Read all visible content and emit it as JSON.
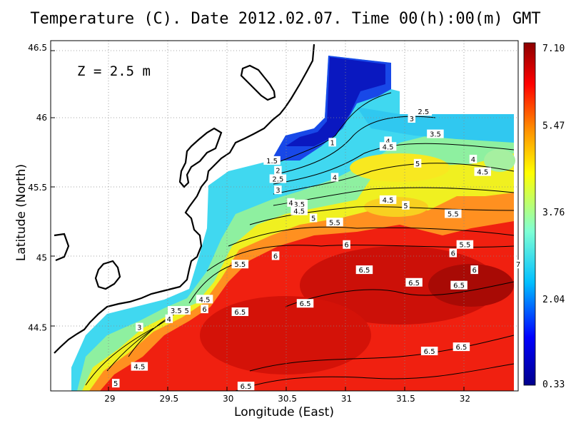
{
  "chart_data": {
    "type": "heatmap",
    "title": "Temperature (C). Date 2012.02.07. Time 00(h):00(m) GMT",
    "xlabel": "Longitude (East)",
    "ylabel": "Latitude (North)",
    "annotation": "Z = 2.5 m",
    "xlim": [
      28.5,
      32.45
    ],
    "ylim": [
      44.05,
      46.55
    ],
    "xticks": [
      "29",
      "29.5",
      "30",
      "30.5",
      "31",
      "31.5",
      "32"
    ],
    "yticks": [
      "44.5",
      "45",
      "45.5",
      "46",
      "46.5"
    ],
    "grid": true,
    "colorbar": {
      "ticks": [
        "0.33",
        "2.04",
        "3.76",
        "5.47",
        "7.10"
      ],
      "range": [
        0.33,
        7.1
      ],
      "colors": [
        "#00008b",
        "#0000ff",
        "#00bfff",
        "#7fffd4",
        "#ffff00",
        "#ff8c00",
        "#ff0000",
        "#8b0000"
      ]
    },
    "contour_labels": [
      {
        "text": "1",
        "lon": 30.88,
        "lat": 45.82
      },
      {
        "text": "1.5",
        "lon": 30.37,
        "lat": 45.69
      },
      {
        "text": "2",
        "lon": 30.42,
        "lat": 45.62
      },
      {
        "text": "2.5",
        "lon": 30.42,
        "lat": 45.56
      },
      {
        "text": "3",
        "lon": 30.42,
        "lat": 45.48
      },
      {
        "text": "3.5",
        "lon": 30.6,
        "lat": 45.38
      },
      {
        "text": "4",
        "lon": 30.53,
        "lat": 45.39
      },
      {
        "text": "4.5",
        "lon": 30.6,
        "lat": 45.33
      },
      {
        "text": "5",
        "lon": 30.72,
        "lat": 45.28
      },
      {
        "text": "5.5",
        "lon": 30.9,
        "lat": 45.25
      },
      {
        "text": "6",
        "lon": 31.0,
        "lat": 45.09
      },
      {
        "text": "6",
        "lon": 30.4,
        "lat": 45.01
      },
      {
        "text": "5.5",
        "lon": 30.1,
        "lat": 44.95
      },
      {
        "text": "4",
        "lon": 30.9,
        "lat": 45.57
      },
      {
        "text": "4",
        "lon": 31.35,
        "lat": 45.83
      },
      {
        "text": "4.5",
        "lon": 31.35,
        "lat": 45.79
      },
      {
        "text": "5",
        "lon": 31.6,
        "lat": 45.67
      },
      {
        "text": "4.5",
        "lon": 31.35,
        "lat": 45.41
      },
      {
        "text": "5",
        "lon": 31.5,
        "lat": 45.37
      },
      {
        "text": "5.5",
        "lon": 31.9,
        "lat": 45.31
      },
      {
        "text": "4",
        "lon": 32.07,
        "lat": 45.7
      },
      {
        "text": "4.5",
        "lon": 32.15,
        "lat": 45.61
      },
      {
        "text": "3",
        "lon": 31.55,
        "lat": 45.99
      },
      {
        "text": "2.5",
        "lon": 31.65,
        "lat": 46.04
      },
      {
        "text": "3.5",
        "lon": 31.75,
        "lat": 45.88
      },
      {
        "text": "5.5",
        "lon": 32.0,
        "lat": 45.09
      },
      {
        "text": "6",
        "lon": 31.9,
        "lat": 45.03
      },
      {
        "text": "6",
        "lon": 32.08,
        "lat": 44.91
      },
      {
        "text": "7",
        "lon": 32.45,
        "lat": 44.95
      },
      {
        "text": "6.5",
        "lon": 31.15,
        "lat": 44.91
      },
      {
        "text": "6.5",
        "lon": 31.57,
        "lat": 44.82
      },
      {
        "text": "6.5",
        "lon": 31.95,
        "lat": 44.8
      },
      {
        "text": "6.5",
        "lon": 30.65,
        "lat": 44.67
      },
      {
        "text": "6.5",
        "lon": 30.1,
        "lat": 44.61
      },
      {
        "text": "6.5",
        "lon": 31.7,
        "lat": 44.33
      },
      {
        "text": "6.5",
        "lon": 31.97,
        "lat": 44.36
      },
      {
        "text": "6.5",
        "lon": 30.15,
        "lat": 44.08
      },
      {
        "text": "4.5",
        "lon": 29.8,
        "lat": 44.7
      },
      {
        "text": "6",
        "lon": 29.8,
        "lat": 44.63
      },
      {
        "text": "5",
        "lon": 29.65,
        "lat": 44.62
      },
      {
        "text": "3.5",
        "lon": 29.56,
        "lat": 44.62
      },
      {
        "text": "4",
        "lon": 29.5,
        "lat": 44.56
      },
      {
        "text": "3",
        "lon": 29.25,
        "lat": 44.5
      },
      {
        "text": "4.5",
        "lon": 29.25,
        "lat": 44.22
      },
      {
        "text": "5",
        "lon": 29.05,
        "lat": 44.1
      }
    ]
  }
}
